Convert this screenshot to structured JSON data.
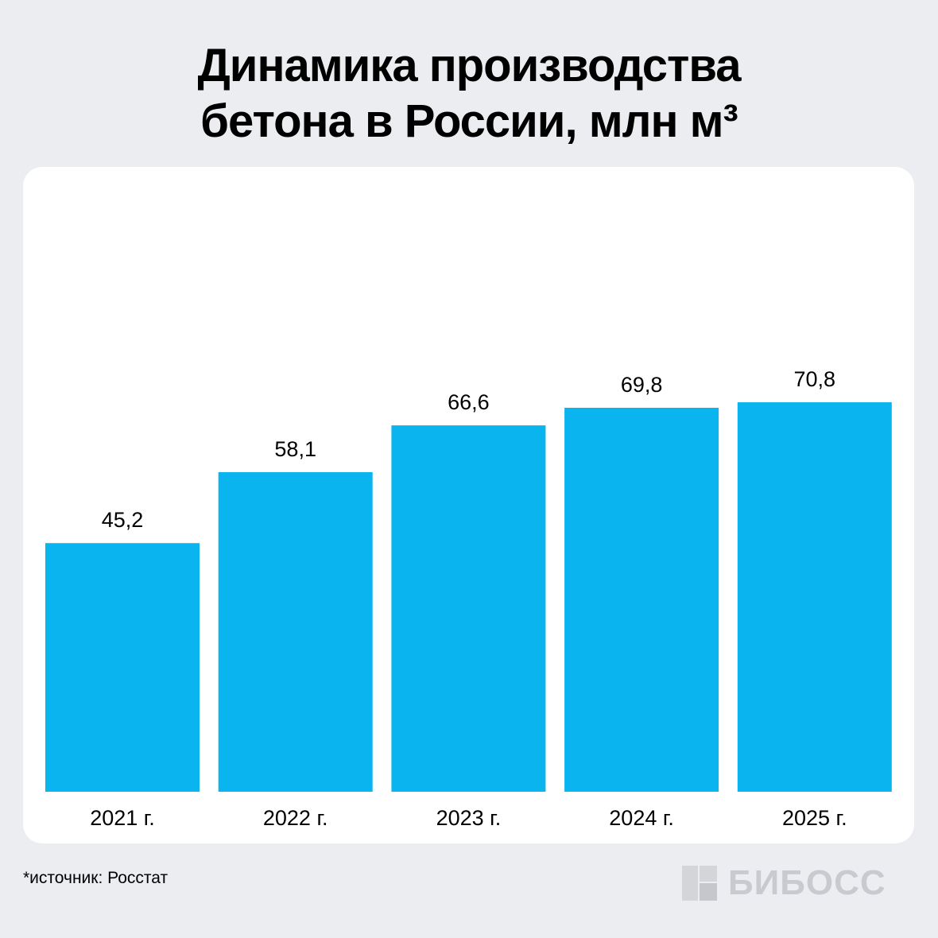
{
  "title_line1": "Динамика производства",
  "title_line2": "бетона в России, млн м³",
  "source": "*источник: Росстат",
  "logo": {
    "text": "БИБОСС",
    "icon": "logo-square-icon"
  },
  "colors": {
    "bar": "#0ab4ef",
    "background": "#ecedf1",
    "card": "#ffffff",
    "logo": "#c9cacf"
  },
  "chart_data": {
    "type": "bar",
    "title": "Динамика производства бетона в России, млн м³",
    "categories": [
      "2021 г.",
      "2022 г.",
      "2023 г.",
      "2024 г.",
      "2025 г."
    ],
    "values": [
      45.2,
      58.1,
      66.6,
      69.8,
      70.8
    ],
    "value_labels": [
      "45,2",
      "58,1",
      "66,6",
      "69,8",
      "70,8"
    ],
    "ylim": [
      0,
      75
    ],
    "grid": false,
    "legend": "none"
  }
}
